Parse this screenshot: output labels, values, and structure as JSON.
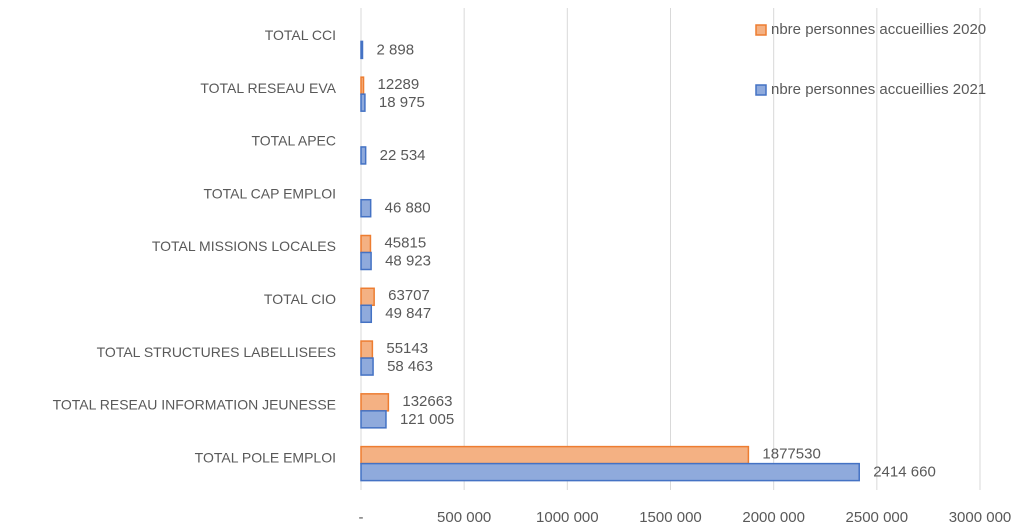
{
  "chart_data": {
    "type": "hbar",
    "categories": [
      "TOTAL CCI",
      "TOTAL RESEAU EVA",
      "TOTAL APEC",
      "TOTAL CAP EMPLOI",
      "TOTAL MISSIONS LOCALES",
      "TOTAL CIO",
      "TOTAL STRUCTURES LABELLISEES",
      "TOTAL RESEAU INFORMATION JEUNESSE",
      "TOTAL POLE EMPLOI"
    ],
    "series": [
      {
        "name": "nbre personnes accueillies 2020",
        "color": "#f4b183",
        "stroke": "#ed7d31",
        "values": [
          null,
          12289,
          null,
          null,
          45815,
          63707,
          55143,
          132663,
          1877530
        ]
      },
      {
        "name": "nbre personnes accueillies 2021",
        "color": "#8faadc",
        "stroke": "#4472c4",
        "values": [
          2898,
          18975,
          22534,
          46880,
          48923,
          49847,
          58463,
          121005,
          2414660
        ],
        "value_labels": [
          "2 898",
          "18 975",
          "22 534",
          "46 880",
          "48 923",
          "49 847",
          "58 463",
          "121 005",
          "2414 660"
        ]
      }
    ],
    "xlim": [
      0,
      3000000
    ],
    "xticks": [
      {
        "value": 0,
        "label": "-"
      },
      {
        "value": 500000,
        "label": "500 000"
      },
      {
        "value": 1000000,
        "label": "1000 000"
      },
      {
        "value": 1500000,
        "label": "1500 000"
      },
      {
        "value": 2000000,
        "label": "2000 000"
      },
      {
        "value": 2500000,
        "label": "2500 000"
      },
      {
        "value": 3000000,
        "label": "3000 000"
      }
    ],
    "grid": true,
    "legend": "top-right"
  }
}
